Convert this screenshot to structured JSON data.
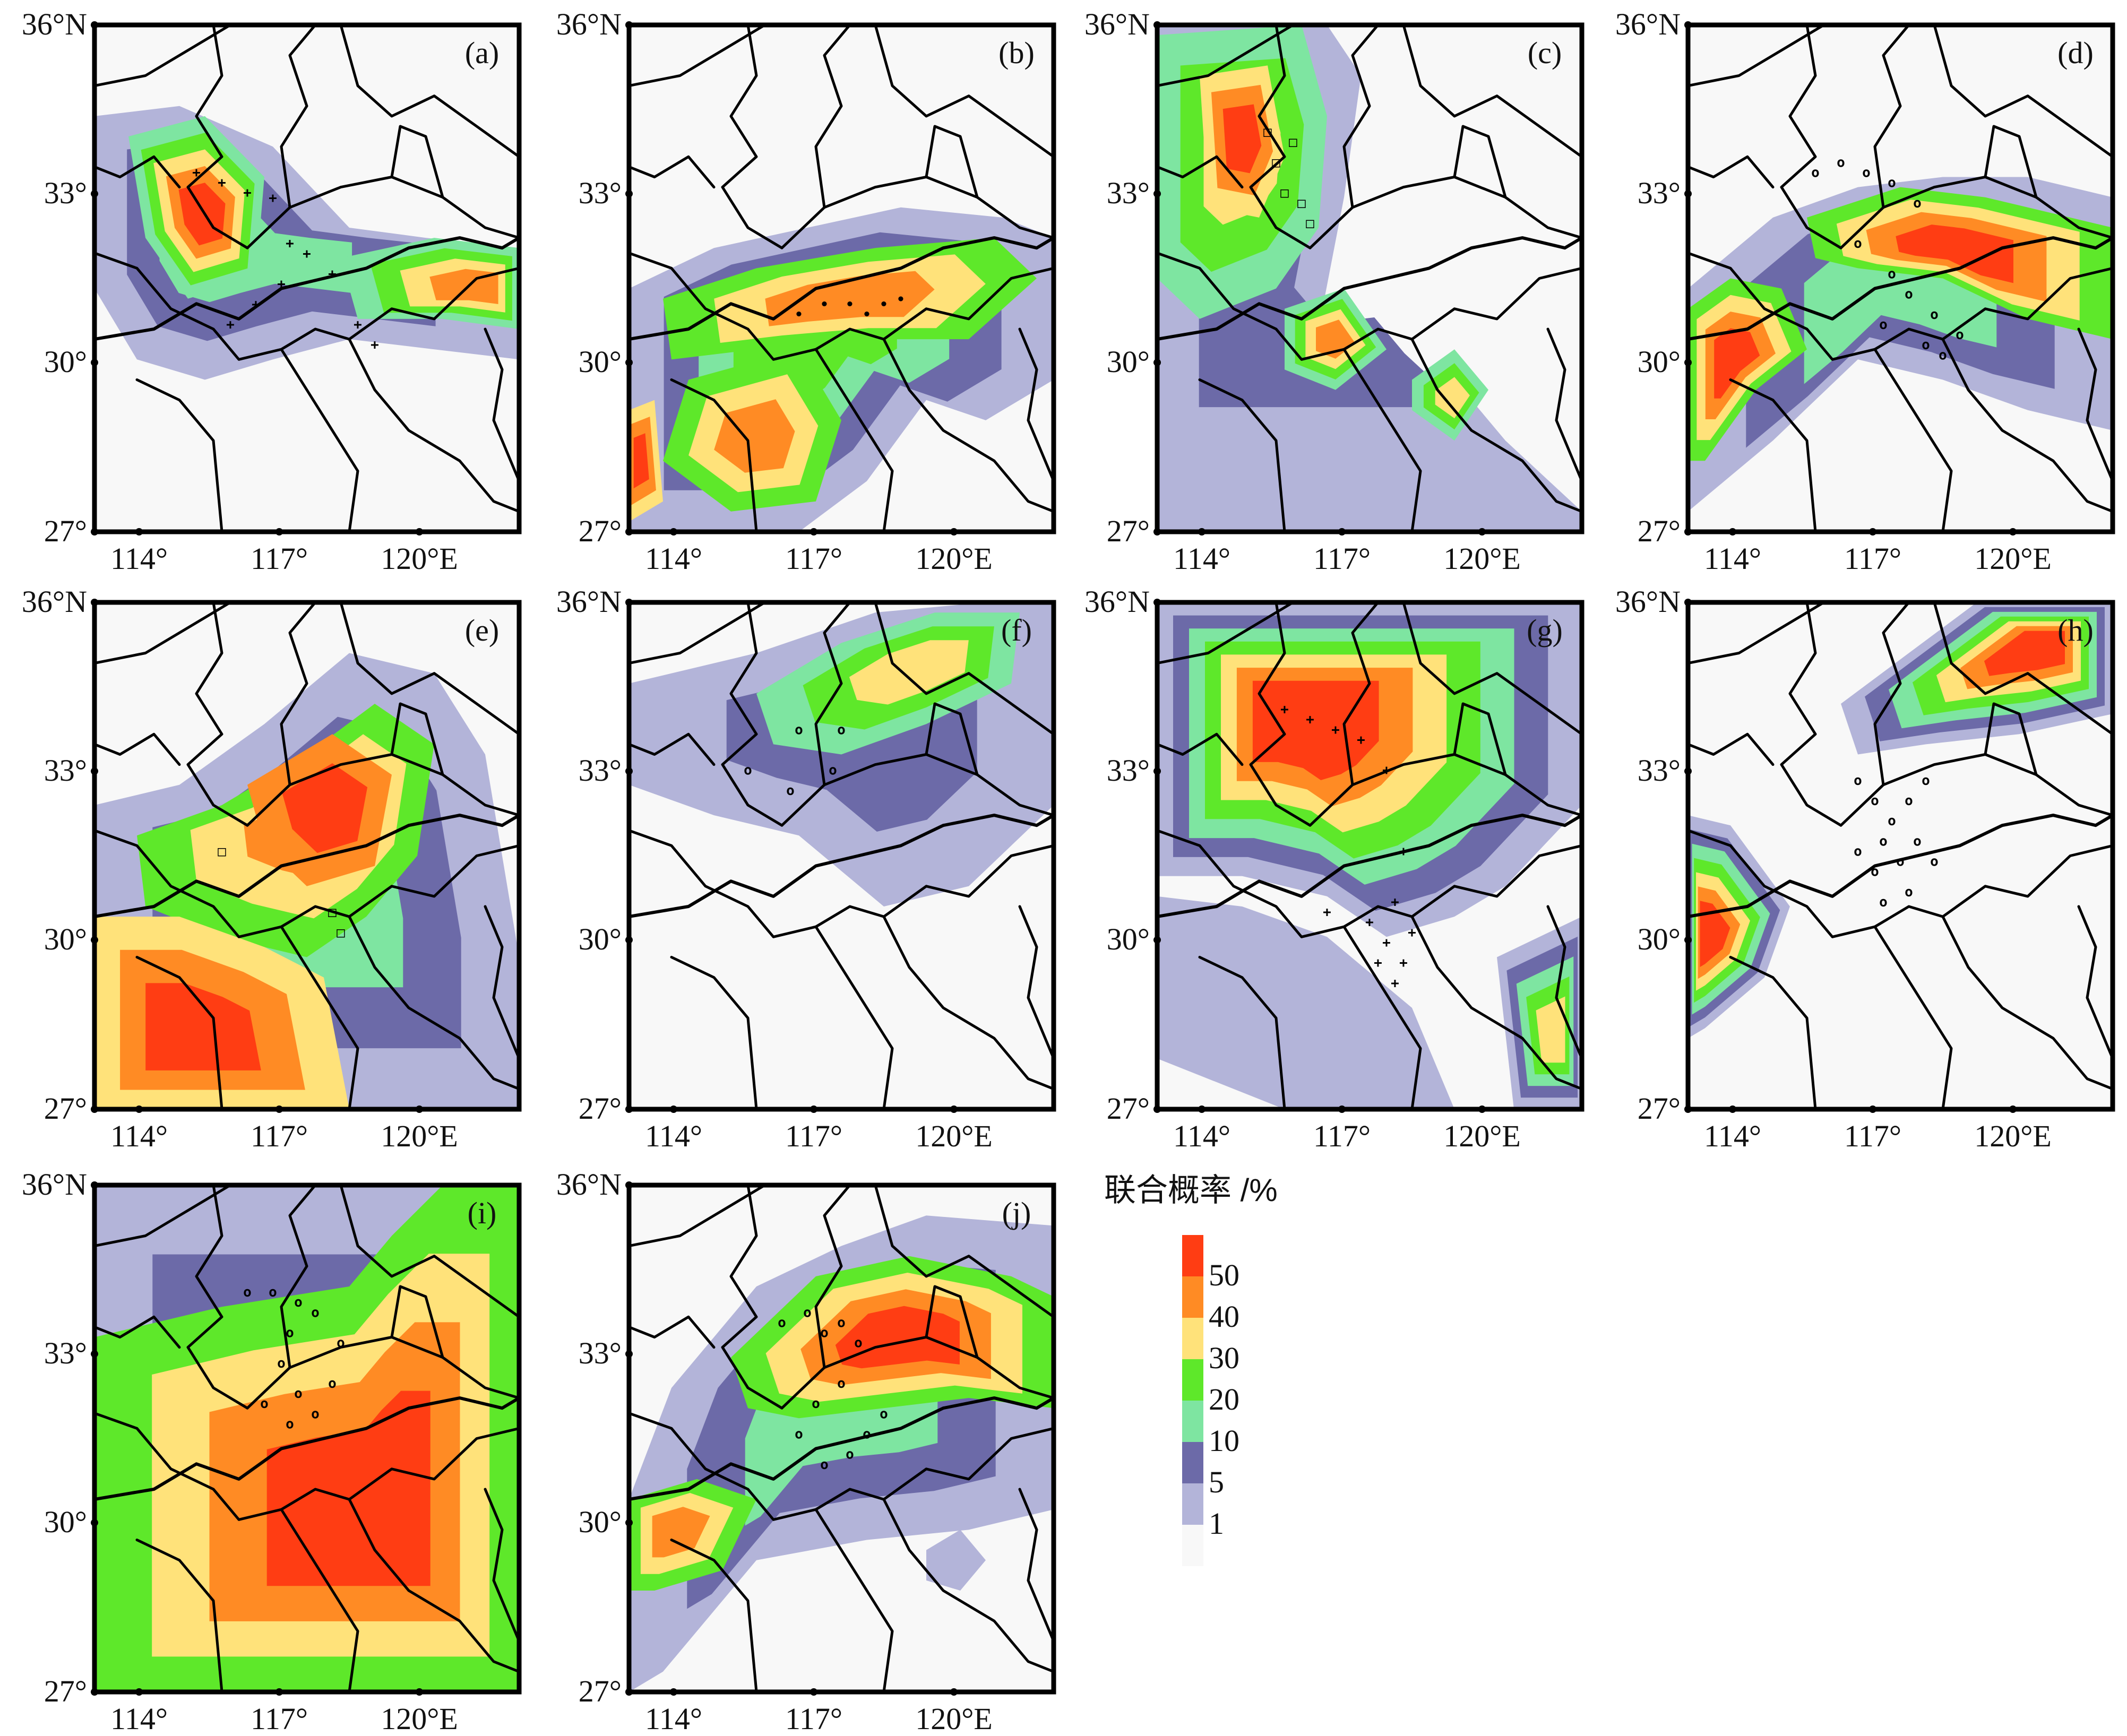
{
  "panels": [
    {
      "id": "a",
      "label": "(a)"
    },
    {
      "id": "b",
      "label": "(b)"
    },
    {
      "id": "c",
      "label": "(c)"
    },
    {
      "id": "d",
      "label": "(d)"
    },
    {
      "id": "e",
      "label": "(e)"
    },
    {
      "id": "f",
      "label": "(f)"
    },
    {
      "id": "g",
      "label": "(g)"
    },
    {
      "id": "h",
      "label": "(h)"
    },
    {
      "id": "i",
      "label": "(i)"
    },
    {
      "id": "j",
      "label": "(j)"
    }
  ],
  "axes": {
    "lat_labels": [
      "36°N",
      "33°",
      "30°",
      "27°"
    ],
    "lon_labels": [
      "114°",
      "117°",
      "120°E"
    ]
  },
  "legend": {
    "title": "联合概率 /%",
    "labels": [
      "50",
      "40",
      "30",
      "20",
      "10",
      "5",
      "1"
    ],
    "colors": [
      "#ff3d13",
      "#ff8b24",
      "#ffe27a",
      "#5ee82a",
      "#7ee5a1",
      "#6c6aa8",
      "#b3b4d9",
      "#f8f8f8"
    ]
  },
  "colors": {
    "level_1": "#b3b4d9",
    "level_5": "#6c6aa8",
    "level_10": "#7ee5a1",
    "level_20": "#5ee82a",
    "level_30": "#ffe27a",
    "level_40": "#ff8b24",
    "level_50": "#ff3d13"
  }
}
